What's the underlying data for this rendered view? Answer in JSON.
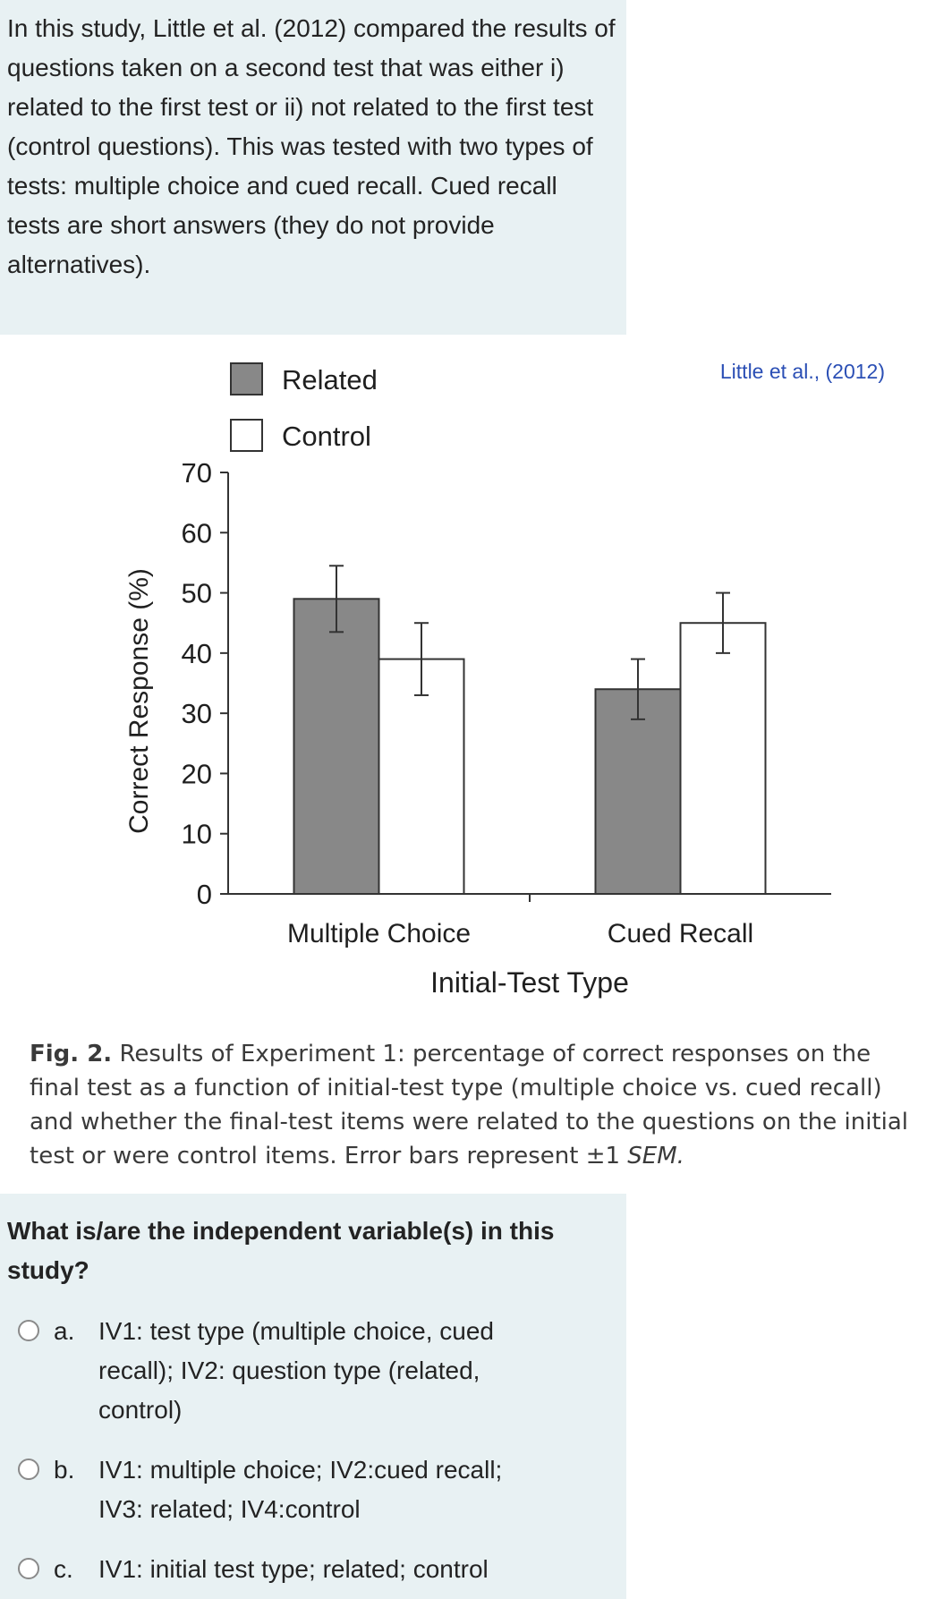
{
  "intro": {
    "text": "In this study, Little et al. (2012) compared the results of questions taken on a second test that was either i) related to the first test or ii) not related to the first test (control questions). This was tested with two types of tests: multiple choice and cued recall. Cued recall tests are short answers (they do not provide alternatives)."
  },
  "figure": {
    "source_label": "Little et al., (2012)",
    "caption_label": "Fig. 2.",
    "caption_text": "Results of Experiment 1: percentage of correct responses on the final test as a function of initial-test type (multiple choice vs. cued recall) and whether the final-test items were related to the questions on the initial test or were control items. Error bars represent ±1",
    "caption_sem": "SEM."
  },
  "chart_data": {
    "type": "bar",
    "categories": [
      "Multiple Choice",
      "Cued Recall"
    ],
    "series": [
      {
        "name": "Related",
        "values": [
          49,
          34
        ],
        "errors": [
          5.5,
          5
        ],
        "color": "#888888"
      },
      {
        "name": "Control",
        "values": [
          39,
          45
        ],
        "errors": [
          6,
          5
        ],
        "color": "#ffffff"
      }
    ],
    "xlabel": "Initial-Test Type",
    "ylabel": "Correct Response (%)",
    "ylim": [
      0,
      70
    ],
    "yticks": [
      0,
      10,
      20,
      30,
      40,
      50,
      60,
      70
    ],
    "legend_position": "top-left",
    "grid": false
  },
  "question": {
    "text": "What is/are the independent variable(s) in this study?"
  },
  "options": [
    {
      "letter": "a.",
      "text": "IV1: test type (multiple choice, cued recall); IV2: question type (related, control)"
    },
    {
      "letter": "b.",
      "text": "IV1: multiple choice; IV2:cued recall; IV3: related; IV4:control"
    },
    {
      "letter": "c.",
      "text": "IV1: initial test type; related; control"
    }
  ]
}
